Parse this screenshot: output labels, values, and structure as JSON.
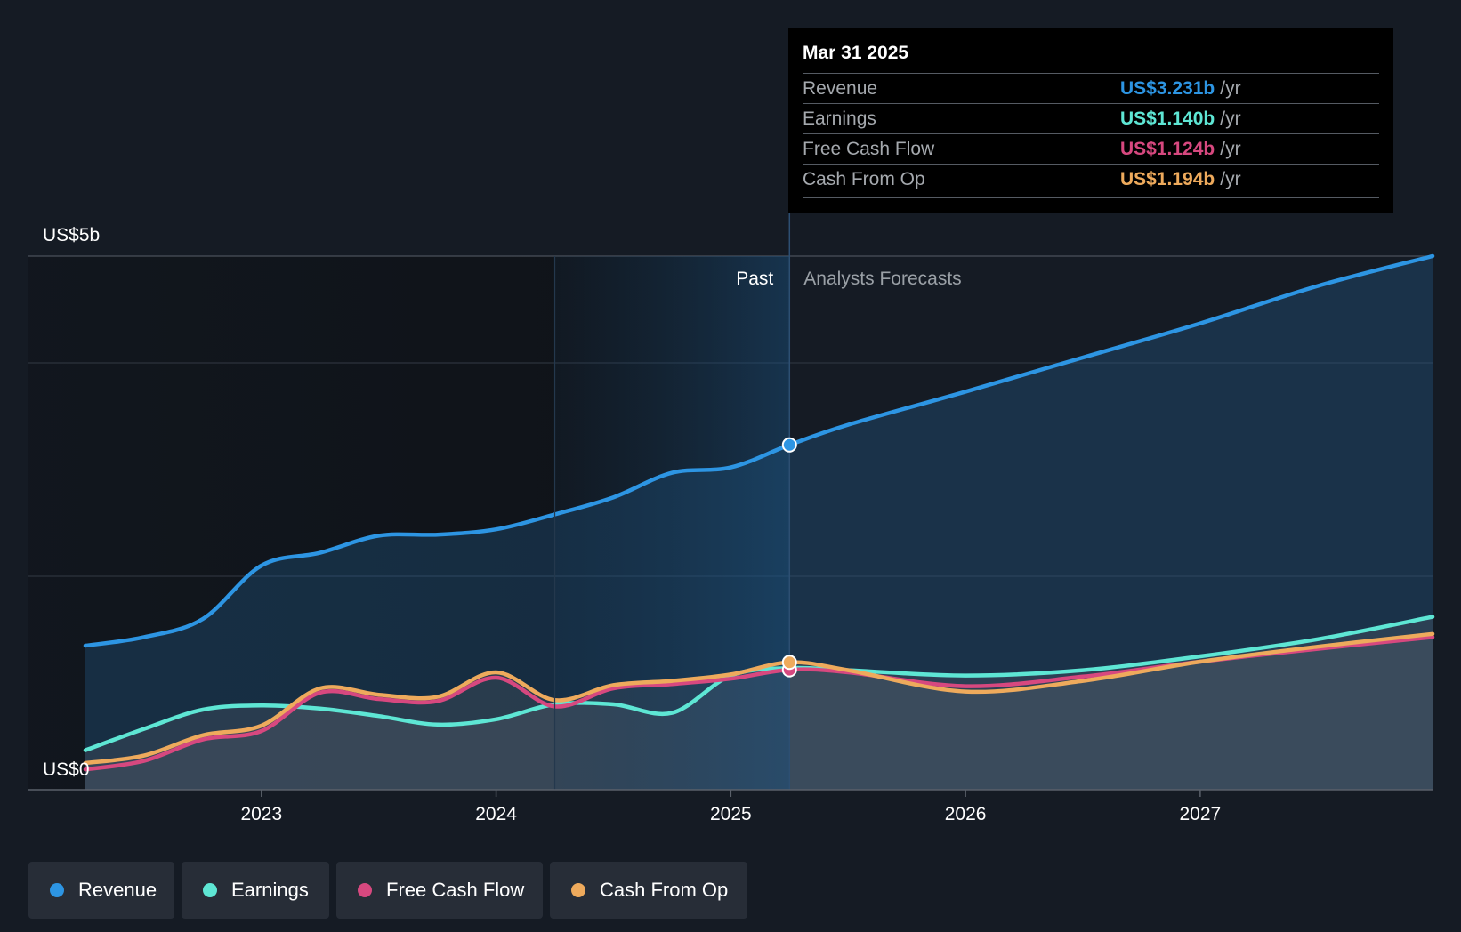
{
  "tooltip": {
    "date": "Mar 31 2025",
    "unit": "/yr",
    "rows": [
      {
        "label": "Revenue",
        "value": "US$3.231b"
      },
      {
        "label": "Earnings",
        "value": "US$1.140b"
      },
      {
        "label": "Free Cash Flow",
        "value": "US$1.124b"
      },
      {
        "label": "Cash From Op",
        "value": "US$1.194b"
      }
    ]
  },
  "labels": {
    "past": "Past",
    "forecast": "Analysts Forecasts"
  },
  "legend": [
    {
      "label": "Revenue",
      "color": "#2d95e3"
    },
    {
      "label": "Earnings",
      "color": "#5ee6d4"
    },
    {
      "label": "Free Cash Flow",
      "color": "#d7487f"
    },
    {
      "label": "Cash From Op",
      "color": "#eeaa5c"
    }
  ],
  "chart_data": {
    "type": "line",
    "title": "",
    "xlabel": "",
    "ylabel": "",
    "y_axis_labels": [
      "US$5b",
      "US$0"
    ],
    "ylim": [
      0,
      5
    ],
    "xlim": [
      2022.25,
      2027.99
    ],
    "x_ticks": [
      2023,
      2024,
      2025,
      2026,
      2027
    ],
    "divider_x": 2025.25,
    "highlight_start_x": 2024.25,
    "series": [
      {
        "name": "Revenue",
        "color": "#2d95e3",
        "x": [
          2022.25,
          2022.5,
          2022.75,
          2023.0,
          2023.25,
          2023.5,
          2023.75,
          2024.0,
          2024.25,
          2024.5,
          2024.75,
          2025.0,
          2025.25,
          2025.5,
          2026.0,
          2026.5,
          2027.0,
          2027.5,
          2027.99
        ],
        "values": [
          1.35,
          1.43,
          1.6,
          2.1,
          2.22,
          2.38,
          2.39,
          2.44,
          2.58,
          2.74,
          2.97,
          3.02,
          3.231,
          3.42,
          3.73,
          4.05,
          4.37,
          4.72,
          5.0
        ]
      },
      {
        "name": "Earnings",
        "color": "#5ee6d4",
        "x": [
          2022.25,
          2022.5,
          2022.75,
          2023.0,
          2023.25,
          2023.5,
          2023.75,
          2024.0,
          2024.25,
          2024.5,
          2024.75,
          2025.0,
          2025.25,
          2025.5,
          2026.0,
          2026.5,
          2027.0,
          2027.5,
          2027.99
        ],
        "values": [
          0.37,
          0.57,
          0.75,
          0.79,
          0.76,
          0.69,
          0.61,
          0.66,
          0.8,
          0.8,
          0.72,
          1.07,
          1.14,
          1.12,
          1.07,
          1.12,
          1.25,
          1.41,
          1.62
        ]
      },
      {
        "name": "Free Cash Flow",
        "color": "#d7487f",
        "x": [
          2022.25,
          2022.5,
          2022.75,
          2023.0,
          2023.25,
          2023.5,
          2023.75,
          2024.0,
          2024.25,
          2024.5,
          2024.75,
          2025.0,
          2025.25,
          2025.5,
          2026.0,
          2026.5,
          2027.0,
          2027.5,
          2027.99
        ],
        "values": [
          0.19,
          0.27,
          0.47,
          0.55,
          0.91,
          0.85,
          0.83,
          1.05,
          0.78,
          0.95,
          0.99,
          1.04,
          1.124,
          1.1,
          0.97,
          1.06,
          1.2,
          1.32,
          1.43
        ]
      },
      {
        "name": "Cash From Op",
        "color": "#eeaa5c",
        "x": [
          2022.25,
          2022.5,
          2022.75,
          2023.0,
          2023.25,
          2023.5,
          2023.75,
          2024.0,
          2024.25,
          2024.5,
          2024.75,
          2025.0,
          2025.25,
          2025.5,
          2026.0,
          2026.5,
          2027.0,
          2027.5,
          2027.99
        ],
        "values": [
          0.25,
          0.32,
          0.51,
          0.6,
          0.95,
          0.89,
          0.87,
          1.1,
          0.84,
          0.98,
          1.02,
          1.08,
          1.194,
          1.12,
          0.92,
          1.02,
          1.2,
          1.34,
          1.46
        ]
      }
    ]
  }
}
